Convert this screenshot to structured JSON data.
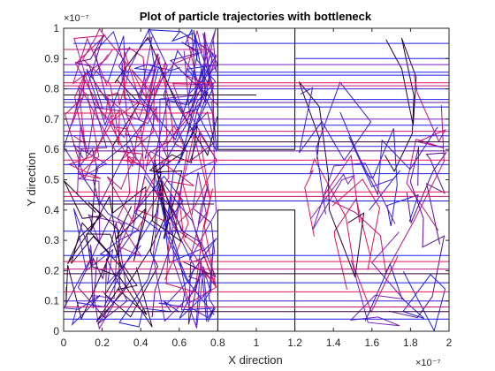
{
  "chart_data": {
    "type": "line",
    "title": "Plot of particle trajectories with bottleneck",
    "xlabel": "X direction",
    "ylabel": "Y direction",
    "xlim": [
      0,
      2e-07
    ],
    "ylim": [
      0,
      1e-07
    ],
    "x_exponent": "×10⁻⁷",
    "y_exponent": "×10⁻⁷",
    "x_ticks": [
      0,
      0.2,
      0.4,
      0.6,
      0.8,
      1,
      1.2,
      1.4,
      1.6,
      1.8,
      2
    ],
    "x_tick_labels": [
      "0",
      "0.2",
      "0.4",
      "0.6",
      "0.8",
      "1",
      "1.2",
      "1.4",
      "1.6",
      "1.8",
      "2"
    ],
    "y_ticks": [
      0,
      0.1,
      0.2,
      0.3,
      0.4,
      0.5,
      0.6,
      0.7,
      0.8,
      0.9,
      1
    ],
    "y_tick_labels": [
      "0",
      "0.1",
      "0.2",
      "0.3",
      "0.4",
      "0.5",
      "0.6",
      "0.7",
      "0.8",
      "0.9",
      "1"
    ],
    "grid": false,
    "legend": "none",
    "bottleneck_boxes": [
      {
        "x": [
          0.8,
          1.2
        ],
        "y": [
          0,
          0.4
        ]
      },
      {
        "x": [
          0.8,
          1.2
        ],
        "y": [
          0.6,
          1.0
        ]
      }
    ],
    "colors": [
      "#1f1fe0",
      "#3a1fd8",
      "#7a1fc0",
      "#c0147c",
      "#e0145a",
      "#2a0030",
      "#5a1090"
    ],
    "horizontal_segments": [
      {
        "y": 0.95,
        "x": [
          0.05,
          2.0
        ],
        "color": "#1f1fe0"
      },
      {
        "y": 0.93,
        "x": [
          0.0,
          0.78
        ],
        "color": "#c0147c"
      },
      {
        "y": 0.9,
        "x": [
          1.2,
          2.0
        ],
        "color": "#1f1fe0"
      },
      {
        "y": 0.88,
        "x": [
          0.0,
          2.0
        ],
        "color": "#7a1fc0"
      },
      {
        "y": 0.855,
        "x": [
          0.0,
          2.0
        ],
        "color": "#1f1fe0"
      },
      {
        "y": 0.845,
        "x": [
          0.0,
          2.0
        ],
        "color": "#1f1fe0"
      },
      {
        "y": 0.82,
        "x": [
          0.0,
          2.0
        ],
        "color": "#e0145a"
      },
      {
        "y": 0.81,
        "x": [
          0.0,
          2.0
        ],
        "color": "#c0147c"
      },
      {
        "y": 0.8,
        "x": [
          0.0,
          2.0
        ],
        "color": "#3a1fd8"
      },
      {
        "y": 0.78,
        "x": [
          0.0,
          1.0
        ],
        "color": "#2a0030"
      },
      {
        "y": 0.765,
        "x": [
          0.0,
          2.0
        ],
        "color": "#1f1fe0"
      },
      {
        "y": 0.755,
        "x": [
          0.0,
          2.0
        ],
        "color": "#5a1090"
      },
      {
        "y": 0.74,
        "x": [
          0.0,
          2.0
        ],
        "color": "#1f1fe0"
      },
      {
        "y": 0.72,
        "x": [
          0.0,
          0.78
        ],
        "color": "#e0145a"
      },
      {
        "y": 0.7,
        "x": [
          0.0,
          2.0
        ],
        "color": "#7a1fc0"
      },
      {
        "y": 0.68,
        "x": [
          0.0,
          2.0
        ],
        "color": "#1f1fe0"
      },
      {
        "y": 0.66,
        "x": [
          0.0,
          2.0
        ],
        "color": "#c0147c"
      },
      {
        "y": 0.645,
        "x": [
          0.0,
          2.0
        ],
        "color": "#1f1fe0"
      },
      {
        "y": 0.625,
        "x": [
          0.0,
          2.0
        ],
        "color": "#2a0030"
      },
      {
        "y": 0.61,
        "x": [
          0.0,
          2.0
        ],
        "color": "#3a1fd8"
      },
      {
        "y": 0.595,
        "x": [
          0.0,
          2.0
        ],
        "color": "#5a1090"
      },
      {
        "y": 0.565,
        "x": [
          0.0,
          2.0
        ],
        "color": "#e0145a"
      },
      {
        "y": 0.55,
        "x": [
          0.0,
          2.0
        ],
        "color": "#1f1fe0"
      },
      {
        "y": 0.52,
        "x": [
          0.0,
          2.0
        ],
        "color": "#1f1fe0"
      },
      {
        "y": 0.46,
        "x": [
          0.0,
          2.0
        ],
        "color": "#e0145a"
      },
      {
        "y": 0.445,
        "x": [
          0.0,
          2.0
        ],
        "color": "#c0147c"
      },
      {
        "y": 0.43,
        "x": [
          0.0,
          2.0
        ],
        "color": "#1f1fe0"
      },
      {
        "y": 0.42,
        "x": [
          0.0,
          0.78
        ],
        "color": "#2a0030"
      },
      {
        "y": 0.33,
        "x": [
          0.0,
          0.8
        ],
        "color": "#1f1fe0"
      },
      {
        "y": 0.25,
        "x": [
          0.0,
          2.0
        ],
        "color": "#1f1fe0"
      },
      {
        "y": 0.23,
        "x": [
          0.0,
          2.0
        ],
        "color": "#e0145a"
      },
      {
        "y": 0.205,
        "x": [
          0.0,
          2.0
        ],
        "color": "#c0147c"
      },
      {
        "y": 0.19,
        "x": [
          0.0,
          2.0
        ],
        "color": "#2a0030"
      },
      {
        "y": 0.16,
        "x": [
          0.0,
          2.0
        ],
        "color": "#1f1fe0"
      },
      {
        "y": 0.13,
        "x": [
          0.0,
          2.0
        ],
        "color": "#e0145a"
      },
      {
        "y": 0.1,
        "x": [
          0.0,
          2.0
        ],
        "color": "#3a1fd8"
      },
      {
        "y": 0.08,
        "x": [
          0.0,
          2.0
        ],
        "color": "#c0147c"
      },
      {
        "y": 0.065,
        "x": [
          0.0,
          2.0
        ],
        "color": "#2a0030"
      },
      {
        "y": 0.04,
        "x": [
          0.0,
          2.0
        ],
        "color": "#1f1fe0"
      }
    ]
  }
}
